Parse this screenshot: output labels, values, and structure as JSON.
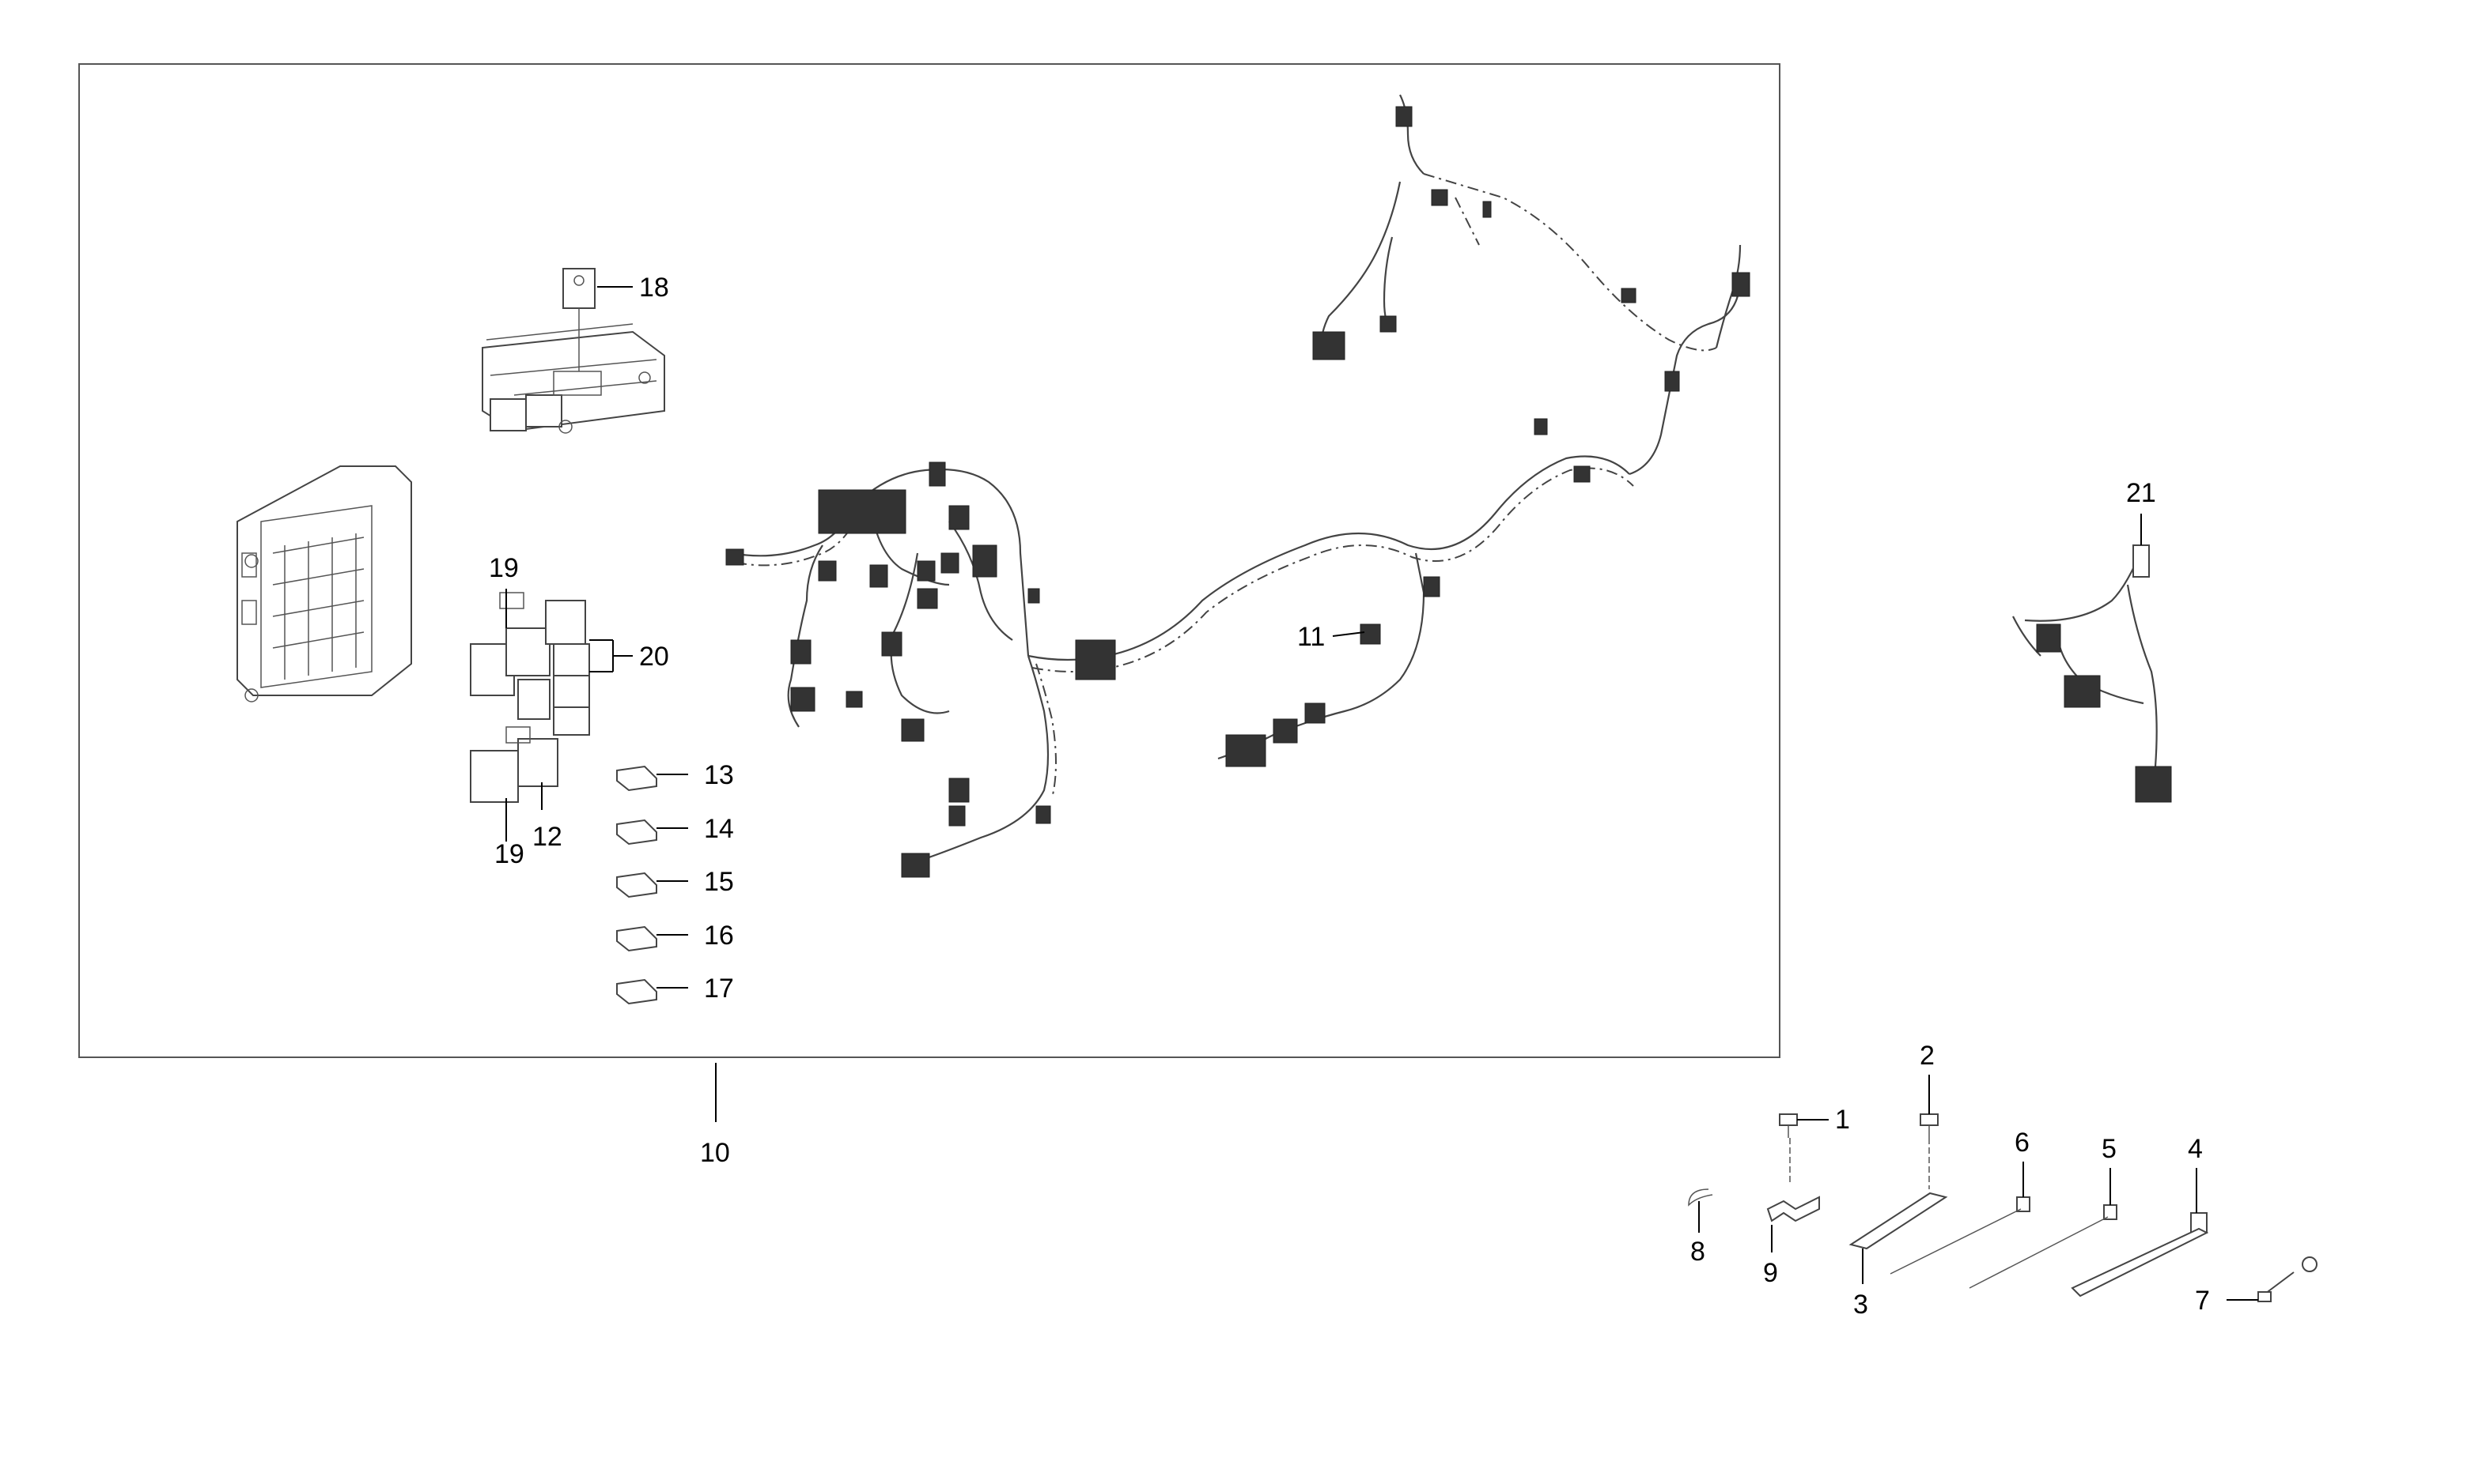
{
  "callouts": {
    "c1": "1",
    "c2": "2",
    "c3": "3",
    "c4": "4",
    "c5": "5",
    "c6": "6",
    "c7": "7",
    "c8": "8",
    "c9": "9",
    "c10": "10",
    "c11": "11",
    "c12": "12",
    "c13": "13",
    "c14": "14",
    "c15": "15",
    "c16": "16",
    "c17": "17",
    "c18": "18",
    "c19a": "19",
    "c19b": "19",
    "c20": "20",
    "c21": "21"
  }
}
